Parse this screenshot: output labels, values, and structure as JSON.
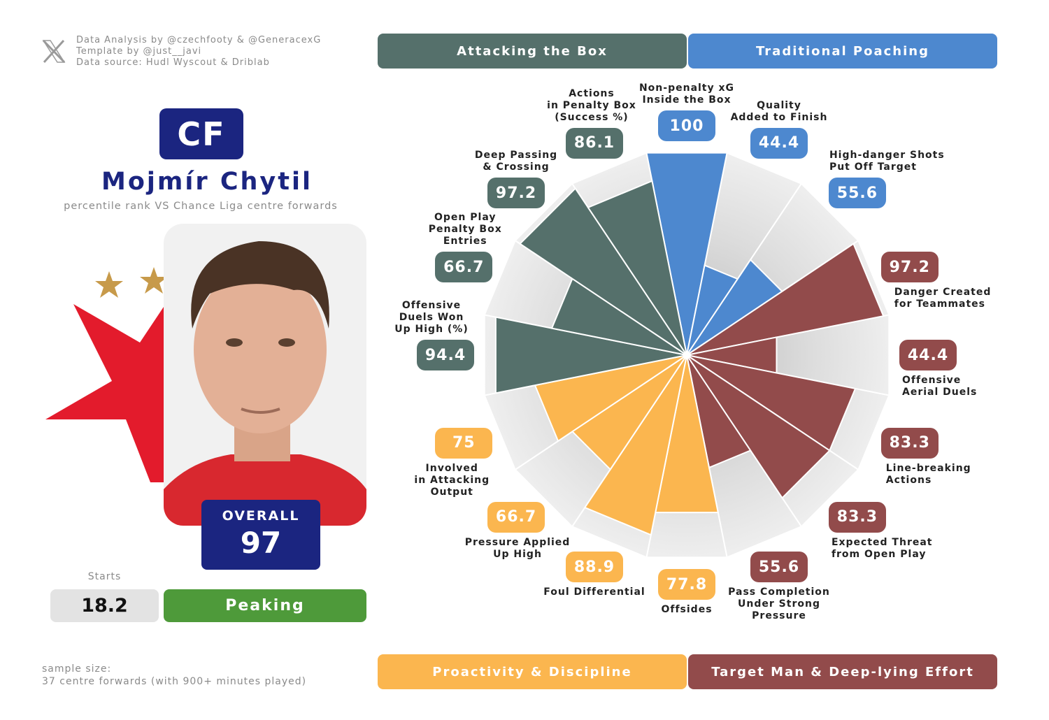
{
  "credits": [
    "Data Analysis by @czechfooty & @GeneracexG",
    "Template by @just__javi",
    "Data source: Hudl Wyscout & Driblab"
  ],
  "player": {
    "position": "CF",
    "name": "Mojmír Chytil",
    "subtitle": "percentile rank VS Chance Liga centre forwards",
    "overall_label": "OVERALL",
    "overall": 97,
    "starts_label": "Starts",
    "starts": 18.2,
    "status": "Peaking"
  },
  "sample": [
    "sample size:",
    "37 centre forwards (with 900+ minutes played)"
  ],
  "chart_data": {
    "type": "pizza",
    "ylim": [
      0,
      100
    ],
    "series": [
      {
        "name": "Traditional Poaching",
        "color": "#4d88cf",
        "categories": [
          "Non-penalty xG\nInside the Box",
          "Quality\nAdded to Finish",
          "High-danger Shots\nPut Off Target"
        ],
        "values": [
          100,
          44.4,
          55.6
        ]
      },
      {
        "name": "Target Man & Deep-lying Effort",
        "color": "#924b4b",
        "categories": [
          "Danger Created\nfor Teammates",
          "Offensive\nAerial Duels",
          "Line-breaking\nActions",
          "Expected Threat\nfrom Open Play",
          "Pass Completion\nUnder Strong\nPressure"
        ],
        "values": [
          97.2,
          44.4,
          83.3,
          83.3,
          55.6
        ]
      },
      {
        "name": "Proactivity & Discipline",
        "color": "#fbb64f",
        "categories": [
          "Offsides",
          "Foul Differential",
          "Pressure Applied\nUp High",
          "Involved\nin Attacking\nOutput"
        ],
        "values": [
          77.8,
          88.9,
          66.7,
          75
        ]
      },
      {
        "name": "Attacking the Box",
        "color": "#55706b",
        "categories": [
          "Offensive\nDuels Won\nUp High (%)",
          "Open Play\nPenalty Box\nEntries",
          "Deep Passing\n& Crossing",
          "Actions\nin Penalty Box\n(Success %)"
        ],
        "values": [
          94.4,
          66.7,
          97.2,
          86.1
        ]
      }
    ]
  }
}
